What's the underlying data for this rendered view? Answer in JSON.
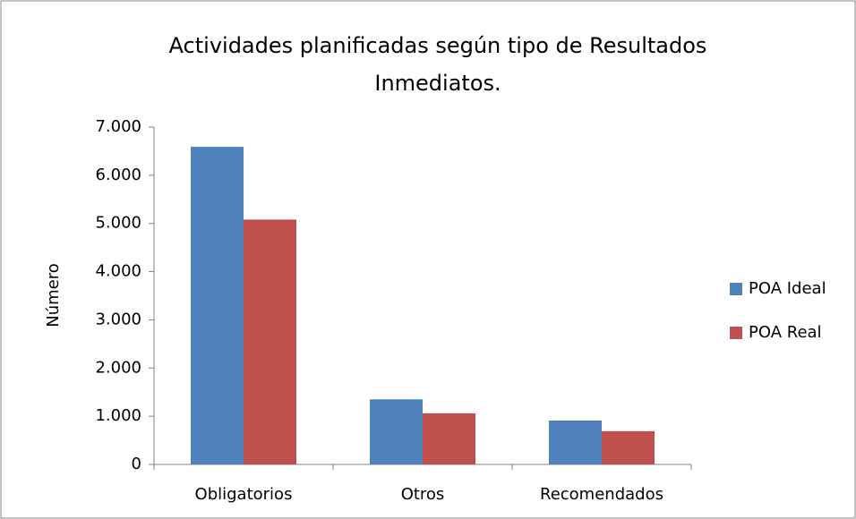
{
  "chart_data": {
    "type": "bar",
    "title": "Actividades planificadas según tipo de Resultados Inmediatos.",
    "y_label": "Número",
    "categories": [
      "Obligatorios",
      "Otros",
      "Recomendados"
    ],
    "series": [
      {
        "name": "POA Ideal",
        "color": "#4f81bd",
        "values": [
          6590,
          1350,
          910
        ]
      },
      {
        "name": "POA Real",
        "color": "#c0504d",
        "values": [
          5080,
          1060,
          690
        ]
      }
    ],
    "ylim": [
      0,
      7000
    ],
    "yticks": [
      0,
      {
        "value": 1000,
        "label": "1.000"
      },
      {
        "value": 2000,
        "label": "2.000"
      },
      {
        "value": 3000,
        "label": "3.000"
      },
      {
        "value": 4000,
        "label": "4.000"
      },
      {
        "value": 5000,
        "label": "5.000"
      },
      {
        "value": 6000,
        "label": "6.000"
      },
      {
        "value": 7000,
        "label": "7.000"
      }
    ],
    "grid": false,
    "legend": "right"
  }
}
